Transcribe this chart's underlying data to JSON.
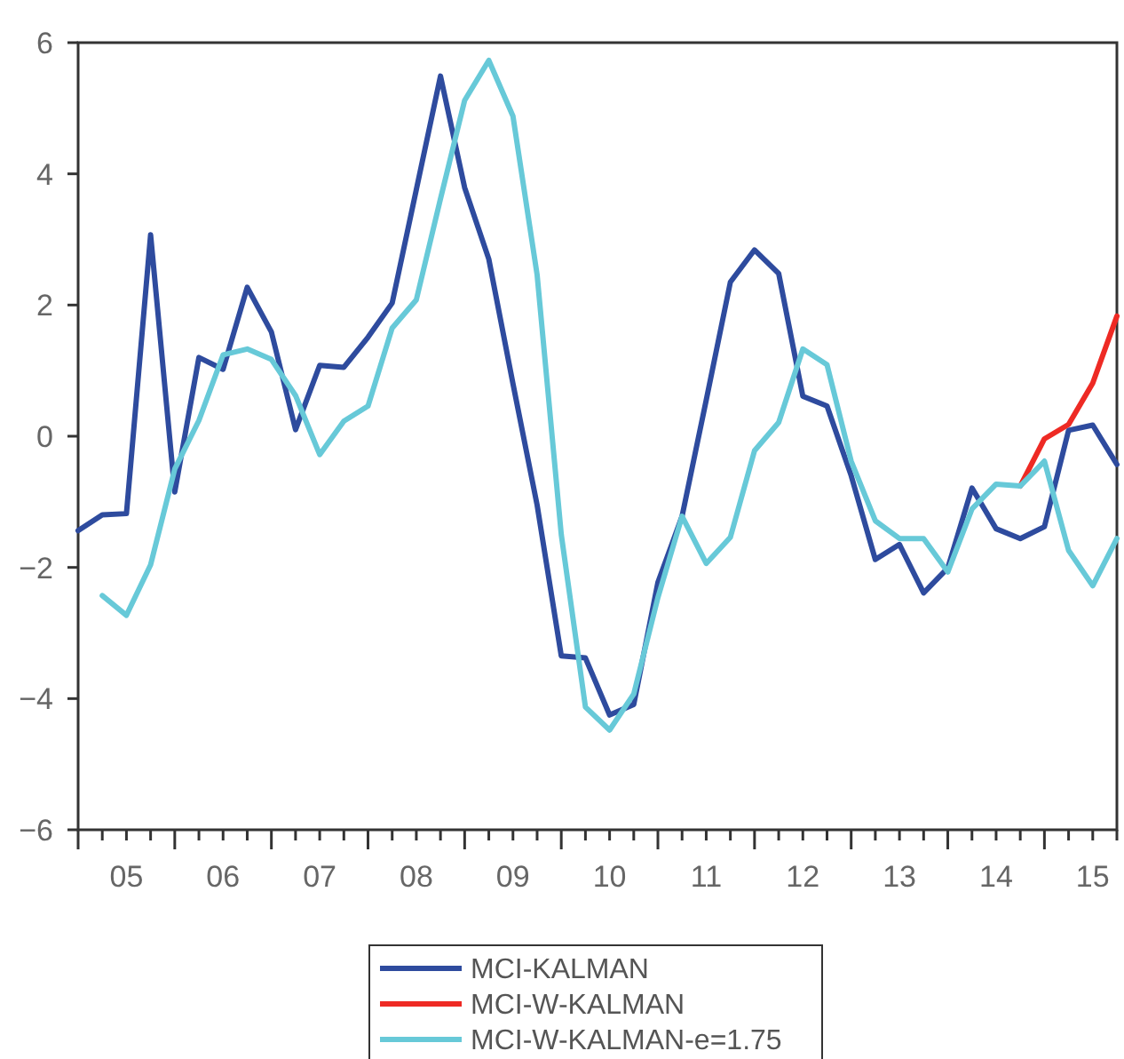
{
  "chart_data": {
    "type": "line",
    "categories": [
      null,
      null,
      "05",
      null,
      null,
      null,
      "06",
      null,
      null,
      null,
      "07",
      null,
      null,
      null,
      "08",
      null,
      null,
      null,
      "09",
      null,
      null,
      null,
      "10",
      null,
      null,
      null,
      "11",
      null,
      null,
      null,
      "12",
      null,
      null,
      null,
      "13",
      null,
      null,
      null,
      "14",
      null,
      null,
      null,
      "15",
      null
    ],
    "series": [
      {
        "name": "MCI-KALMAN",
        "color": "#2e4b9e",
        "values": [
          -1.44,
          -1.2,
          -1.18,
          3.07,
          -0.85,
          1.2,
          1.02,
          2.27,
          1.59,
          0.1,
          1.08,
          1.05,
          1.51,
          2.03,
          3.76,
          5.49,
          3.79,
          2.7,
          0.8,
          -1.05,
          -3.35,
          -3.38,
          -4.25,
          -4.09,
          -2.23,
          -1.22,
          0.55,
          2.35,
          2.84,
          2.48,
          0.61,
          0.46,
          -0.6,
          -1.88,
          -1.65,
          -2.39,
          -2.01,
          -0.79,
          -1.41,
          -1.56,
          -1.38,
          0.09,
          0.17,
          -0.43
        ]
      },
      {
        "name": "MCI-W-KALMAN",
        "color": "#ee2a24",
        "values": [
          null,
          null,
          null,
          null,
          null,
          null,
          null,
          null,
          null,
          null,
          null,
          null,
          null,
          null,
          null,
          null,
          null,
          null,
          null,
          null,
          null,
          null,
          null,
          null,
          null,
          null,
          null,
          null,
          null,
          null,
          null,
          null,
          null,
          null,
          null,
          null,
          null,
          null,
          null,
          -0.76,
          -0.04,
          0.18,
          0.81,
          1.83
        ]
      },
      {
        "name": "MCI-W-KALMAN-e=1.75",
        "color": "#67c9d8",
        "values": [
          null,
          -2.43,
          -2.73,
          -1.96,
          -0.5,
          0.24,
          1.24,
          1.33,
          1.17,
          0.62,
          -0.28,
          0.23,
          0.46,
          1.65,
          2.08,
          3.62,
          5.12,
          5.73,
          4.88,
          2.46,
          -1.5,
          -4.13,
          -4.48,
          -3.93,
          -2.46,
          -1.22,
          -1.94,
          -1.54,
          -0.22,
          0.21,
          1.33,
          1.09,
          -0.38,
          -1.29,
          -1.56,
          -1.56,
          -2.07,
          -1.11,
          -0.73,
          -0.76,
          -0.38,
          -1.74,
          -2.28,
          -1.56
        ]
      }
    ],
    "ylim": [
      -6,
      6
    ],
    "yticks": [
      -6,
      -4,
      -2,
      0,
      2,
      4,
      6
    ],
    "legend": "bottom",
    "marker": "none",
    "line_style": "solid"
  }
}
